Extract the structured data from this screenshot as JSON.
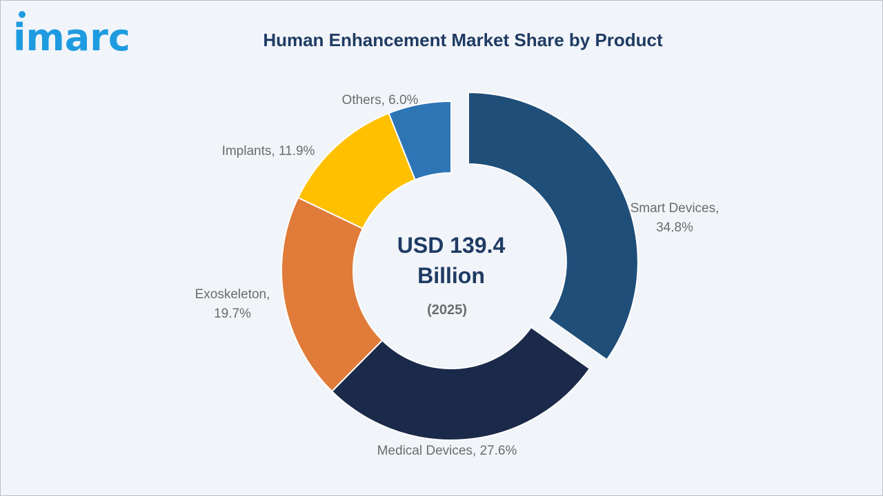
{
  "brand": {
    "logo_text": "imarc",
    "logo_color": "#1e9be0"
  },
  "chart_data": {
    "type": "pie",
    "title": "Human Enhancement Market Share by Product",
    "center_value": "USD 139.4",
    "center_unit": "Billion",
    "center_year": "(2025)",
    "unit": "%",
    "slices": [
      {
        "name": "Smart Devices",
        "value": 34.8,
        "label_line1": "Smart Devices,",
        "label_line2": "34.8%",
        "color": "#1f4e79",
        "exploded": true
      },
      {
        "name": "Medical Devices",
        "value": 27.6,
        "label_line1": "Medical Devices, 27.6%",
        "label_line2": "",
        "color": "#1b2a4a",
        "exploded": false
      },
      {
        "name": "Exoskeleton",
        "value": 19.7,
        "label_line1": "Exoskeleton,",
        "label_line2": "19.7%",
        "color": "#e07b39",
        "exploded": false
      },
      {
        "name": "Implants",
        "value": 11.9,
        "label_line1": "Implants, 11.9%",
        "label_line2": "",
        "color": "#ffc000",
        "exploded": false
      },
      {
        "name": "Others",
        "value": 6.0,
        "label_line1": "Others, 6.0%",
        "label_line2": "",
        "color": "#2e75b6",
        "exploded": false
      }
    ]
  }
}
